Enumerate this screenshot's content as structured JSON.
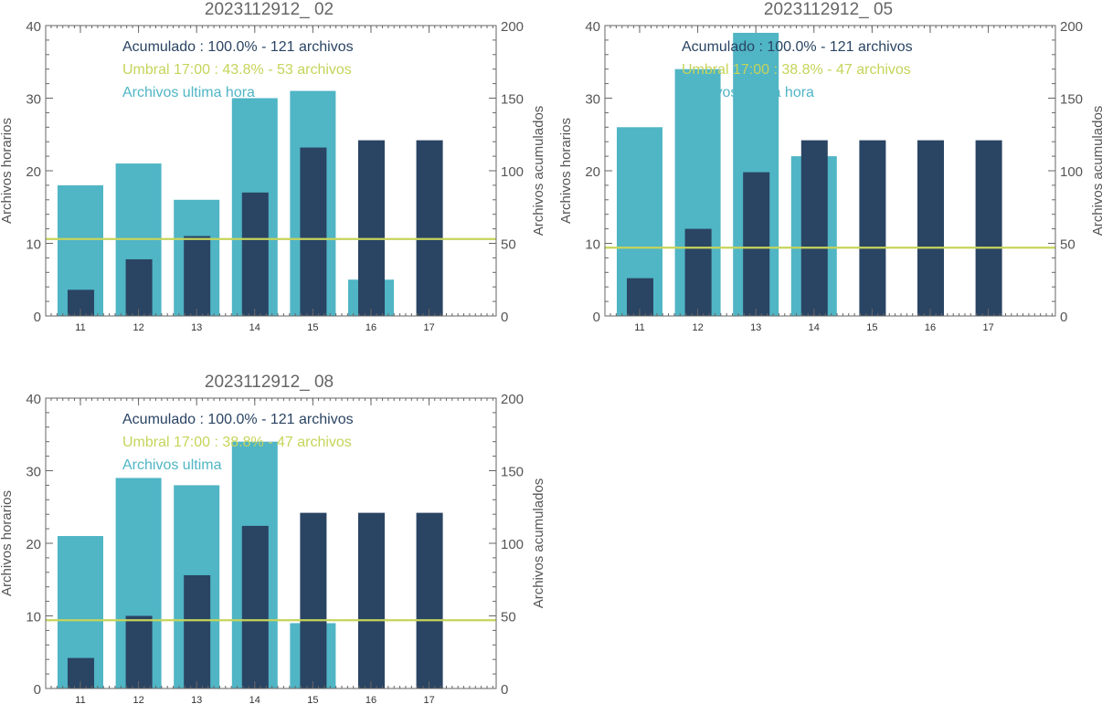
{
  "colors": {
    "hourly": "#50b5c5",
    "accumulated": "#2a4463",
    "threshold": "#c6d45a",
    "axis": "#666666"
  },
  "chart_data": [
    {
      "type": "bar",
      "title": "2023112912_ 02",
      "ylabel": "Archivos horarios",
      "ylabel_right": "Archivos acumulados",
      "categories": [
        "11",
        "12",
        "13",
        "14",
        "15",
        "16",
        "17"
      ],
      "ylim": [
        0,
        40
      ],
      "ylim_right": [
        0,
        200
      ],
      "yticks": [
        0,
        10,
        20,
        30,
        40
      ],
      "yticks_right": [
        0,
        50,
        100,
        150,
        200
      ],
      "series": [
        {
          "name": "Archivos ultima hora",
          "axis": "left",
          "values": [
            18,
            21,
            16,
            30,
            31,
            5,
            0
          ]
        },
        {
          "name": "Acumulado",
          "axis": "right",
          "values": [
            18,
            39,
            55,
            85,
            116,
            121,
            121
          ]
        }
      ],
      "threshold_right": 53,
      "legend": [
        "Acumulado : 100.0% - 121 archivos",
        "Umbral 17:00 : 43.8% - 53 archivos",
        "Archivos ultima hora"
      ]
    },
    {
      "type": "bar",
      "title": "2023112912_ 05",
      "ylabel": "Archivos horarios",
      "ylabel_right": "Archivos acumulados",
      "categories": [
        "11",
        "12",
        "13",
        "14",
        "15",
        "16",
        "17"
      ],
      "ylim": [
        0,
        40
      ],
      "ylim_right": [
        0,
        200
      ],
      "yticks": [
        0,
        10,
        20,
        30,
        40
      ],
      "yticks_right": [
        0,
        50,
        100,
        150,
        200
      ],
      "series": [
        {
          "name": "Archivos ultima hora",
          "axis": "left",
          "values": [
            26,
            34,
            39,
            22,
            0,
            0,
            0
          ]
        },
        {
          "name": "Acumulado",
          "axis": "right",
          "values": [
            26,
            60,
            99,
            121,
            121,
            121,
            121
          ]
        }
      ],
      "threshold_right": 47,
      "legend": [
        "Acumulado : 100.0% - 121 archivos",
        "Umbral 17:00 : 38.8% - 47 archivos",
        "Archivos ultima hora"
      ]
    },
    {
      "type": "bar",
      "title": "2023112912_ 08",
      "ylabel": "Archivos horarios",
      "ylabel_right": "Archivos acumulados",
      "categories": [
        "11",
        "12",
        "13",
        "14",
        "15",
        "16",
        "17"
      ],
      "ylim": [
        0,
        40
      ],
      "ylim_right": [
        0,
        200
      ],
      "yticks": [
        0,
        10,
        20,
        30,
        40
      ],
      "yticks_right": [
        0,
        50,
        100,
        150,
        200
      ],
      "series": [
        {
          "name": "Archivos ultima hora",
          "axis": "left",
          "values": [
            21,
            29,
            28,
            34,
            9,
            0,
            0
          ]
        },
        {
          "name": "Acumulado",
          "axis": "right",
          "values": [
            21,
            50,
            78,
            112,
            121,
            121,
            121
          ]
        }
      ],
      "threshold_right": 47,
      "legend": [
        "Acumulado : 100.0% - 121 archivos",
        "Umbral 17:00 : 38.8% - 47 archivos",
        "Archivos ultima"
      ]
    }
  ]
}
